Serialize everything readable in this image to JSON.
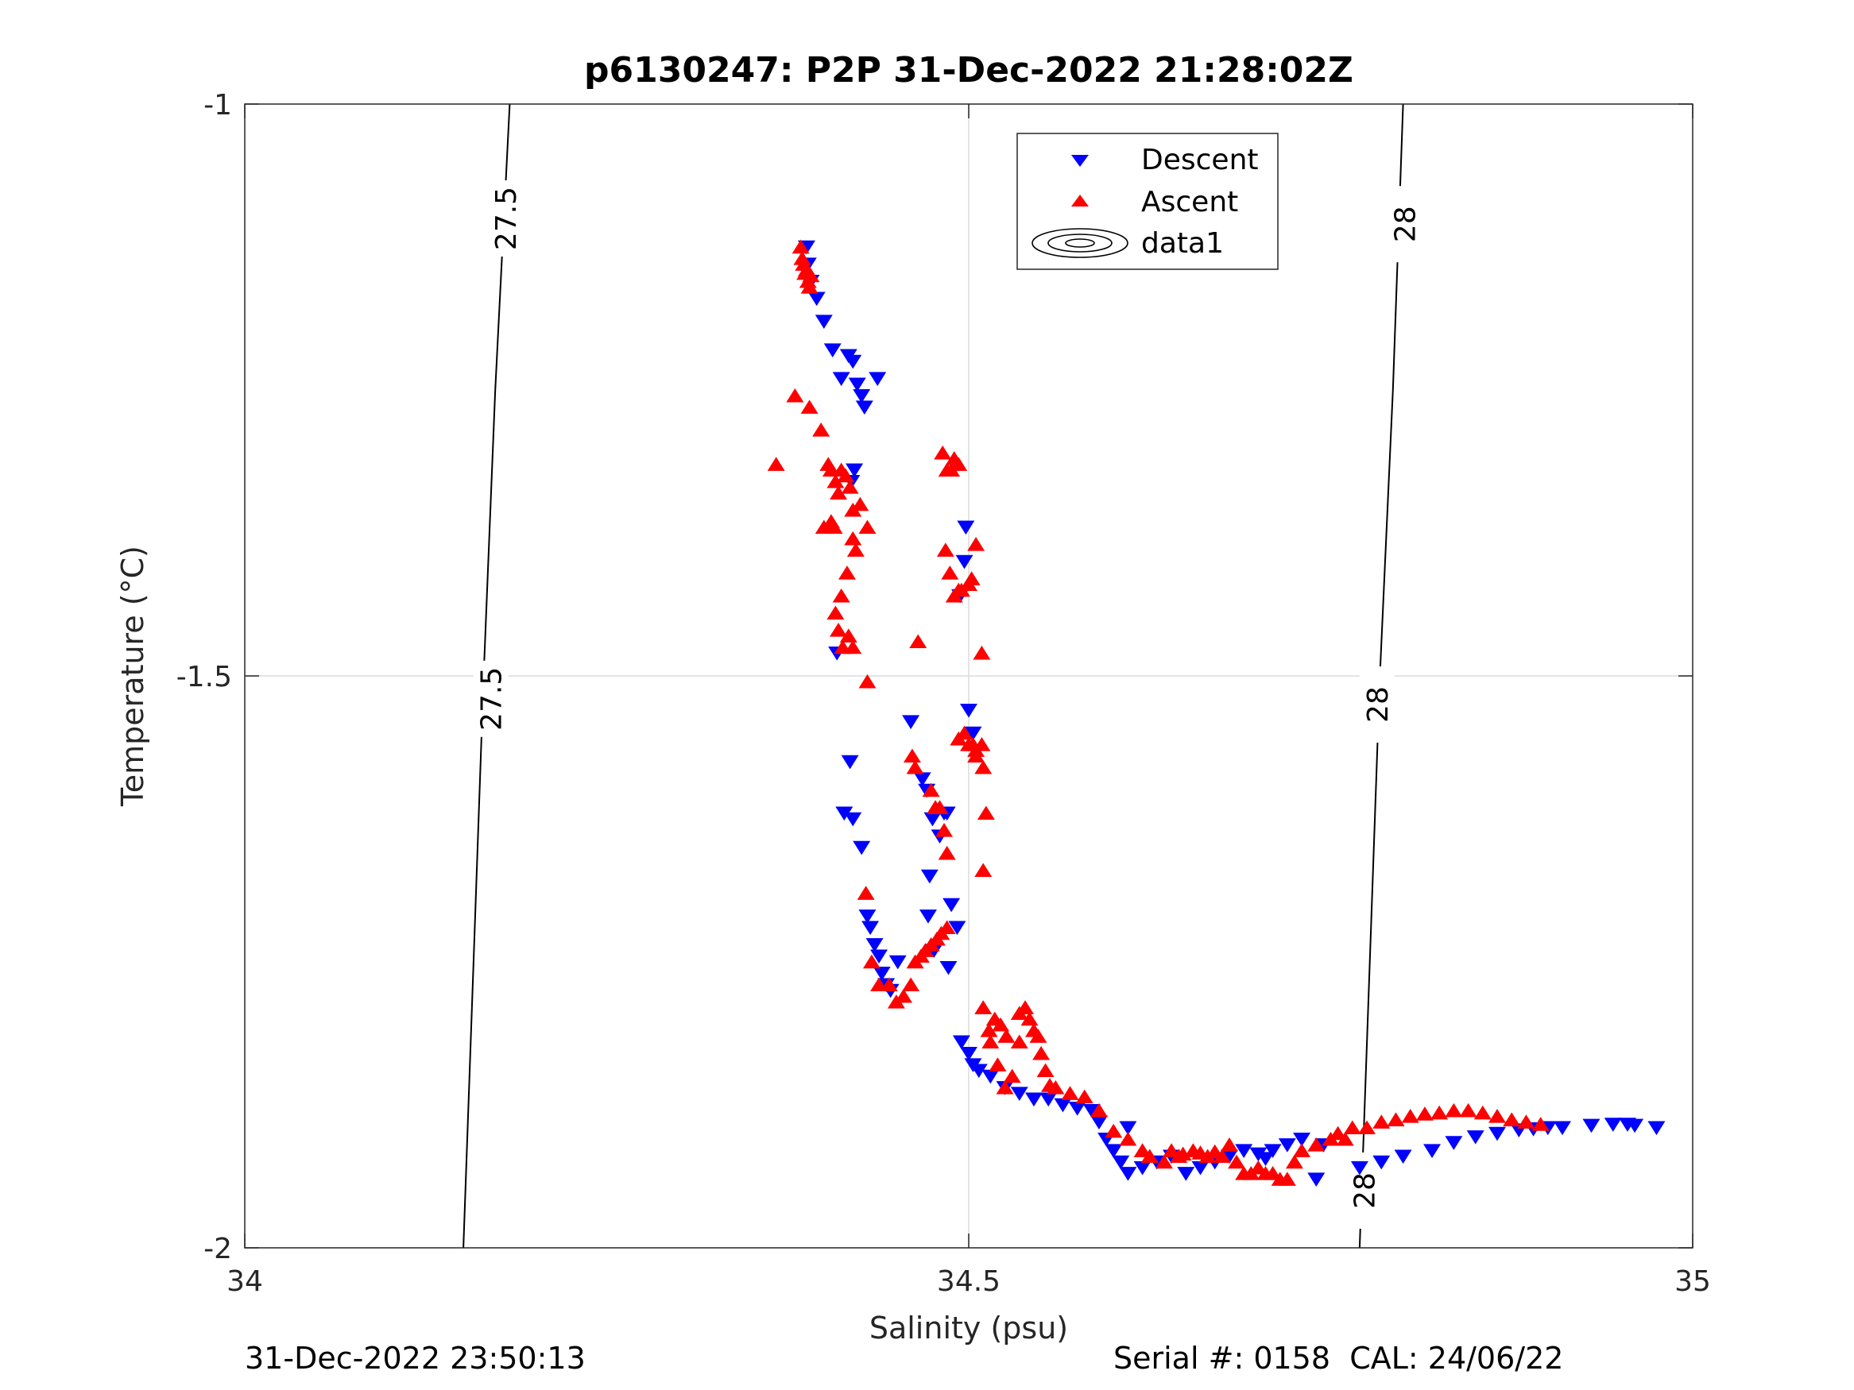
{
  "chart_data": {
    "type": "scatter",
    "title": "p6130247: P2P 31-Dec-2022 21:28:02Z",
    "xlabel": "Salinity (psu)",
    "ylabel": "Temperature (°C)",
    "xlim": [
      34,
      35
    ],
    "ylim": [
      -2,
      -1
    ],
    "xticks": [
      "34",
      "34.5",
      "35"
    ],
    "yticks": [
      "-2",
      "-1.5",
      "-1"
    ],
    "grid": true,
    "legend": {
      "placement": "top-center",
      "entries": [
        "Descent",
        "Ascent",
        "data1"
      ]
    },
    "colors": {
      "descent": "#0000ff",
      "ascent": "#ff0000",
      "contour": "#000000",
      "grid": "#dcdcdc"
    },
    "contours": [
      {
        "label": "27.5",
        "points": [
          [
            34.151,
            -2.0
          ],
          [
            34.158,
            -1.75
          ],
          [
            34.165,
            -1.5
          ],
          [
            34.173,
            -1.25
          ],
          [
            34.183,
            -1.0
          ]
        ],
        "label_positions": [
          [
            34.18,
            -1.1
          ],
          [
            34.17,
            -1.52
          ]
        ]
      },
      {
        "label": "28",
        "points": [
          [
            34.77,
            -2.0
          ],
          [
            34.777,
            -1.75
          ],
          [
            34.784,
            -1.5
          ],
          [
            34.793,
            -1.25
          ],
          [
            34.8,
            -1.0
          ]
        ],
        "label_positions": [
          [
            34.801,
            -1.105
          ],
          [
            34.782,
            -1.525
          ],
          [
            34.773,
            -1.95
          ]
        ]
      }
    ],
    "series": [
      {
        "name": "Descent",
        "marker": "triangle-down",
        "points": [
          [
            34.388,
            -1.125
          ],
          [
            34.389,
            -1.14
          ],
          [
            34.391,
            -1.155
          ],
          [
            34.395,
            -1.17
          ],
          [
            34.4,
            -1.19
          ],
          [
            34.406,
            -1.215
          ],
          [
            34.412,
            -1.24
          ],
          [
            34.417,
            -1.22
          ],
          [
            34.42,
            -1.225
          ],
          [
            34.423,
            -1.245
          ],
          [
            34.426,
            -1.255
          ],
          [
            34.428,
            -1.265
          ],
          [
            34.437,
            -1.24
          ],
          [
            34.419,
            -1.33
          ],
          [
            34.421,
            -1.32
          ],
          [
            34.409,
            -1.48
          ],
          [
            34.418,
            -1.575
          ],
          [
            34.414,
            -1.62
          ],
          [
            34.42,
            -1.625
          ],
          [
            34.426,
            -1.65
          ],
          [
            34.43,
            -1.71
          ],
          [
            34.432,
            -1.72
          ],
          [
            34.435,
            -1.735
          ],
          [
            34.438,
            -1.745
          ],
          [
            34.44,
            -1.76
          ],
          [
            34.443,
            -1.77
          ],
          [
            34.446,
            -1.775
          ],
          [
            34.451,
            -1.75
          ],
          [
            34.46,
            -1.54
          ],
          [
            34.468,
            -1.59
          ],
          [
            34.471,
            -1.6
          ],
          [
            34.473,
            -1.675
          ],
          [
            34.475,
            -1.625
          ],
          [
            34.48,
            -1.64
          ],
          [
            34.483,
            -1.62
          ],
          [
            34.485,
            -1.62
          ],
          [
            34.472,
            -1.71
          ],
          [
            34.476,
            -1.74
          ],
          [
            34.486,
            -1.755
          ],
          [
            34.488,
            -1.7
          ],
          [
            34.492,
            -1.72
          ],
          [
            34.494,
            -1.43
          ],
          [
            34.497,
            -1.4
          ],
          [
            34.5,
            -1.53
          ],
          [
            34.503,
            -1.55
          ],
          [
            34.498,
            -1.37
          ],
          [
            34.495,
            -1.82
          ],
          [
            34.5,
            -1.83
          ],
          [
            34.503,
            -1.84
          ],
          [
            34.507,
            -1.845
          ],
          [
            34.515,
            -1.85
          ],
          [
            34.525,
            -1.86
          ],
          [
            34.535,
            -1.865
          ],
          [
            34.545,
            -1.87
          ],
          [
            34.555,
            -1.87
          ],
          [
            34.565,
            -1.875
          ],
          [
            34.575,
            -1.878
          ],
          [
            34.585,
            -1.88
          ],
          [
            34.59,
            -1.89
          ],
          [
            34.595,
            -1.905
          ],
          [
            34.6,
            -1.915
          ],
          [
            34.605,
            -1.925
          ],
          [
            34.61,
            -1.935
          ],
          [
            34.62,
            -1.93
          ],
          [
            34.63,
            -1.925
          ],
          [
            34.64,
            -1.92
          ],
          [
            34.61,
            -1.895
          ],
          [
            34.65,
            -1.935
          ],
          [
            34.66,
            -1.93
          ],
          [
            34.67,
            -1.925
          ],
          [
            34.68,
            -1.92
          ],
          [
            34.69,
            -1.915
          ],
          [
            34.7,
            -1.918
          ],
          [
            34.705,
            -1.922
          ],
          [
            34.71,
            -1.915
          ],
          [
            34.72,
            -1.91
          ],
          [
            34.73,
            -1.905
          ],
          [
            34.745,
            -1.91
          ],
          [
            34.74,
            -1.94
          ],
          [
            34.77,
            -1.93
          ],
          [
            34.785,
            -1.925
          ],
          [
            34.8,
            -1.92
          ],
          [
            34.82,
            -1.915
          ],
          [
            34.835,
            -1.908
          ],
          [
            34.85,
            -1.903
          ],
          [
            34.865,
            -1.9
          ],
          [
            34.88,
            -1.897
          ],
          [
            34.89,
            -1.896
          ],
          [
            34.9,
            -1.895
          ],
          [
            34.91,
            -1.895
          ],
          [
            34.93,
            -1.893
          ],
          [
            34.945,
            -1.892
          ],
          [
            34.955,
            -1.892
          ],
          [
            34.96,
            -1.893
          ],
          [
            34.975,
            -1.895
          ]
        ]
      },
      {
        "name": "Ascent",
        "marker": "triangle-up",
        "points": [
          [
            34.384,
            -1.125
          ],
          [
            34.385,
            -1.135
          ],
          [
            34.386,
            -1.14
          ],
          [
            34.387,
            -1.148
          ],
          [
            34.389,
            -1.155
          ],
          [
            34.39,
            -1.16
          ],
          [
            34.388,
            -1.145
          ],
          [
            34.391,
            -1.15
          ],
          [
            34.367,
            -1.315
          ],
          [
            34.38,
            -1.255
          ],
          [
            34.39,
            -1.265
          ],
          [
            34.398,
            -1.285
          ],
          [
            34.403,
            -1.315
          ],
          [
            34.405,
            -1.32
          ],
          [
            34.408,
            -1.33
          ],
          [
            34.41,
            -1.34
          ],
          [
            34.412,
            -1.32
          ],
          [
            34.415,
            -1.325
          ],
          [
            34.418,
            -1.335
          ],
          [
            34.42,
            -1.355
          ],
          [
            34.425,
            -1.35
          ],
          [
            34.43,
            -1.37
          ],
          [
            34.405,
            -1.365
          ],
          [
            34.407,
            -1.37
          ],
          [
            34.4,
            -1.37
          ],
          [
            34.42,
            -1.38
          ],
          [
            34.422,
            -1.39
          ],
          [
            34.416,
            -1.41
          ],
          [
            34.412,
            -1.43
          ],
          [
            34.408,
            -1.445
          ],
          [
            34.41,
            -1.46
          ],
          [
            34.413,
            -1.475
          ],
          [
            34.417,
            -1.465
          ],
          [
            34.42,
            -1.475
          ],
          [
            34.43,
            -1.505
          ],
          [
            34.482,
            -1.305
          ],
          [
            34.485,
            -1.32
          ],
          [
            34.488,
            -1.32
          ],
          [
            34.49,
            -1.31
          ],
          [
            34.493,
            -1.315
          ],
          [
            34.484,
            -1.39
          ],
          [
            34.487,
            -1.41
          ],
          [
            34.49,
            -1.43
          ],
          [
            34.493,
            -1.425
          ],
          [
            34.495,
            -1.425
          ],
          [
            34.5,
            -1.42
          ],
          [
            34.502,
            -1.415
          ],
          [
            34.505,
            -1.385
          ],
          [
            34.509,
            -1.48
          ],
          [
            34.465,
            -1.47
          ],
          [
            34.461,
            -1.57
          ],
          [
            34.463,
            -1.58
          ],
          [
            34.474,
            -1.6
          ],
          [
            34.477,
            -1.615
          ],
          [
            34.48,
            -1.615
          ],
          [
            34.483,
            -1.635
          ],
          [
            34.485,
            -1.655
          ],
          [
            34.493,
            -1.555
          ],
          [
            34.5,
            -1.56
          ],
          [
            34.503,
            -1.56
          ],
          [
            34.505,
            -1.57
          ],
          [
            34.509,
            -1.56
          ],
          [
            34.51,
            -1.58
          ],
          [
            34.512,
            -1.62
          ],
          [
            34.51,
            -1.67
          ],
          [
            34.505,
            -1.565
          ],
          [
            34.497,
            -1.55
          ],
          [
            34.429,
            -1.69
          ],
          [
            34.433,
            -1.75
          ],
          [
            34.438,
            -1.77
          ],
          [
            34.445,
            -1.77
          ],
          [
            34.45,
            -1.785
          ],
          [
            34.455,
            -1.78
          ],
          [
            34.46,
            -1.77
          ],
          [
            34.463,
            -1.75
          ],
          [
            34.467,
            -1.745
          ],
          [
            34.47,
            -1.74
          ],
          [
            34.474,
            -1.735
          ],
          [
            34.478,
            -1.73
          ],
          [
            34.481,
            -1.725
          ],
          [
            34.485,
            -1.72
          ],
          [
            34.51,
            -1.79
          ],
          [
            34.515,
            -1.82
          ],
          [
            34.52,
            -1.84
          ],
          [
            34.525,
            -1.86
          ],
          [
            34.514,
            -1.81
          ],
          [
            34.518,
            -1.8
          ],
          [
            34.522,
            -1.805
          ],
          [
            34.526,
            -1.815
          ],
          [
            34.53,
            -1.85
          ],
          [
            34.535,
            -1.82
          ],
          [
            34.535,
            -1.795
          ],
          [
            34.539,
            -1.79
          ],
          [
            34.542,
            -1.8
          ],
          [
            34.545,
            -1.81
          ],
          [
            34.548,
            -1.815
          ],
          [
            34.55,
            -1.83
          ],
          [
            34.553,
            -1.845
          ],
          [
            34.556,
            -1.858
          ],
          [
            34.56,
            -1.86
          ],
          [
            34.57,
            -1.865
          ],
          [
            34.58,
            -1.868
          ],
          [
            34.59,
            -1.88
          ],
          [
            34.6,
            -1.898
          ],
          [
            34.61,
            -1.905
          ],
          [
            34.62,
            -1.915
          ],
          [
            34.625,
            -1.92
          ],
          [
            34.635,
            -1.925
          ],
          [
            34.645,
            -1.92
          ],
          [
            34.655,
            -1.915
          ],
          [
            34.665,
            -1.92
          ],
          [
            34.675,
            -1.92
          ],
          [
            34.68,
            -1.91
          ],
          [
            34.685,
            -1.925
          ],
          [
            34.64,
            -1.915
          ],
          [
            34.648,
            -1.918
          ],
          [
            34.66,
            -1.917
          ],
          [
            34.67,
            -1.916
          ],
          [
            34.69,
            -1.935
          ],
          [
            34.695,
            -1.935
          ],
          [
            34.7,
            -1.93
          ],
          [
            34.705,
            -1.935
          ],
          [
            34.71,
            -1.935
          ],
          [
            34.715,
            -1.94
          ],
          [
            34.72,
            -1.94
          ],
          [
            34.725,
            -1.925
          ],
          [
            34.73,
            -1.915
          ],
          [
            34.74,
            -1.91
          ],
          [
            34.75,
            -1.905
          ],
          [
            34.755,
            -1.9
          ],
          [
            34.76,
            -1.905
          ],
          [
            34.765,
            -1.895
          ],
          [
            34.775,
            -1.895
          ],
          [
            34.785,
            -1.89
          ],
          [
            34.795,
            -1.888
          ],
          [
            34.805,
            -1.885
          ],
          [
            34.815,
            -1.883
          ],
          [
            34.825,
            -1.882
          ],
          [
            34.835,
            -1.88
          ],
          [
            34.845,
            -1.88
          ],
          [
            34.855,
            -1.882
          ],
          [
            34.865,
            -1.885
          ],
          [
            34.875,
            -1.888
          ],
          [
            34.885,
            -1.89
          ],
          [
            34.895,
            -1.892
          ]
        ]
      }
    ]
  },
  "footer": {
    "left": "31-Dec-2022 23:50:13",
    "right": "Serial #: 0158  CAL: 24/06/22"
  }
}
